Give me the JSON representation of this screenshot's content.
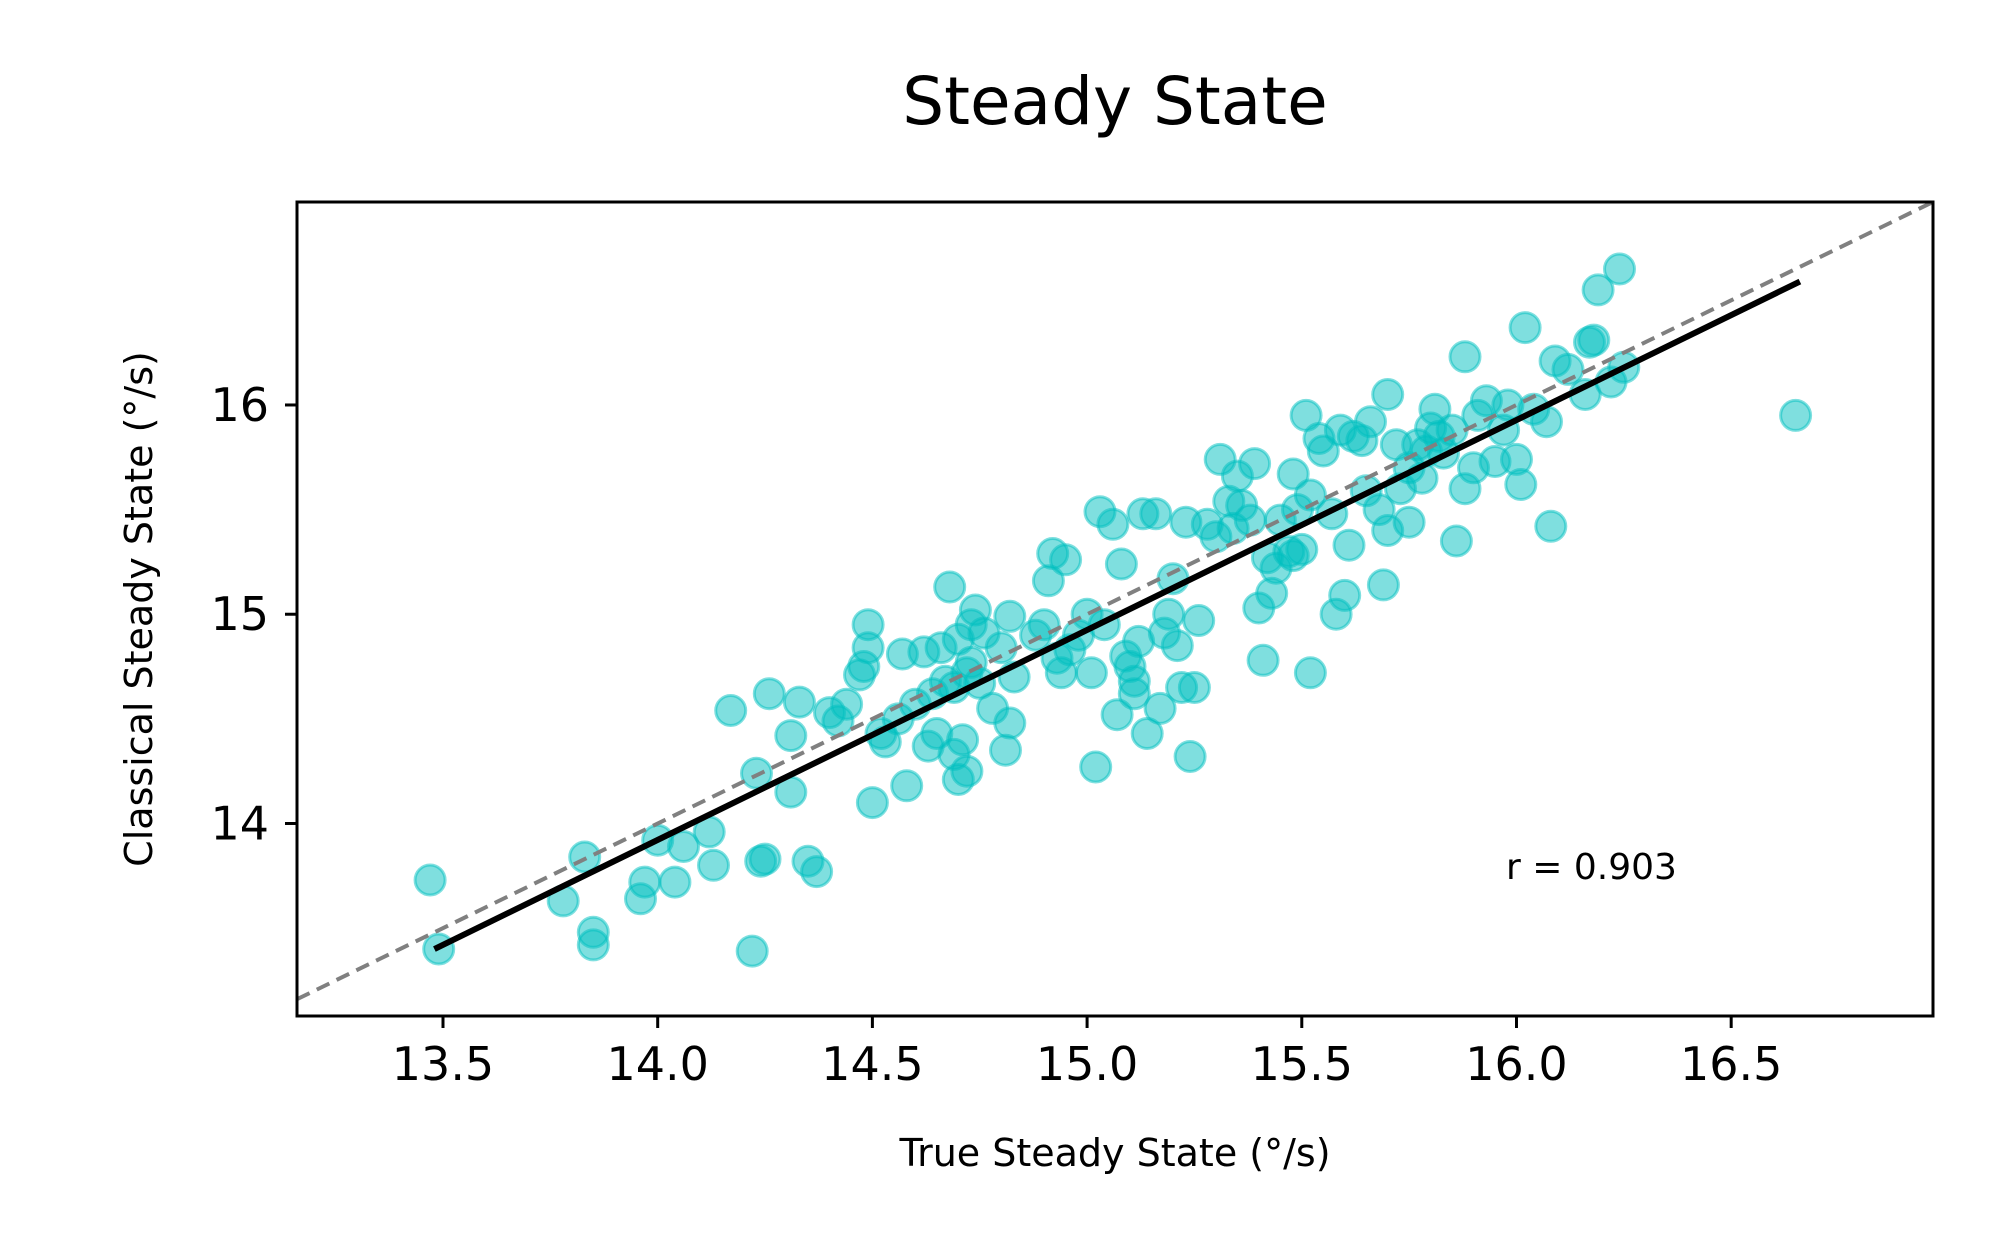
{
  "chart_data": {
    "type": "scatter",
    "title": "Steady State",
    "xlabel": "True Steady State (°/s)",
    "ylabel": "Classical Steady State (°/s)",
    "xlim": [
      13.16,
      16.97
    ],
    "ylim": [
      13.08,
      16.97
    ],
    "xticks": [
      "13.5",
      "14.0",
      "14.5",
      "15.0",
      "15.5",
      "16.0",
      "16.5"
    ],
    "yticks": [
      "14",
      "15",
      "16"
    ],
    "grid": false,
    "annotation": "r = 0.903",
    "colors": {
      "points": "#00bfbf",
      "fit_line": "#000000",
      "identity_line": "#808080"
    },
    "identity_line": {
      "x": [
        13.16,
        16.97
      ],
      "y": [
        13.16,
        16.97
      ],
      "style": "dashed"
    },
    "fit_line": {
      "x": [
        13.48,
        16.66
      ],
      "y": [
        13.4,
        16.59
      ],
      "style": "solid"
    },
    "series": [
      {
        "points": [
          [
            13.47,
            13.73
          ],
          [
            13.49,
            13.4
          ],
          [
            13.78,
            13.63
          ],
          [
            13.83,
            13.84
          ],
          [
            13.85,
            13.48
          ],
          [
            13.85,
            13.42
          ],
          [
            13.96,
            13.64
          ],
          [
            13.97,
            13.72
          ],
          [
            14.0,
            13.92
          ],
          [
            14.04,
            13.72
          ],
          [
            14.06,
            13.89
          ],
          [
            14.12,
            13.96
          ],
          [
            14.13,
            13.8
          ],
          [
            14.17,
            14.54
          ],
          [
            14.22,
            13.39
          ],
          [
            14.23,
            14.24
          ],
          [
            14.24,
            13.82
          ],
          [
            14.25,
            13.83
          ],
          [
            14.26,
            14.62
          ],
          [
            14.31,
            14.15
          ],
          [
            14.31,
            14.42
          ],
          [
            14.33,
            14.58
          ],
          [
            14.35,
            13.82
          ],
          [
            14.37,
            13.77
          ],
          [
            14.4,
            14.53
          ],
          [
            14.42,
            14.49
          ],
          [
            14.44,
            14.57
          ],
          [
            14.47,
            14.71
          ],
          [
            14.48,
            14.75
          ],
          [
            14.49,
            14.95
          ],
          [
            14.49,
            14.84
          ],
          [
            14.5,
            14.1
          ],
          [
            14.52,
            14.43
          ],
          [
            14.53,
            14.39
          ],
          [
            14.56,
            14.5
          ],
          [
            14.57,
            14.81
          ],
          [
            14.58,
            14.18
          ],
          [
            14.6,
            14.57
          ],
          [
            14.62,
            14.82
          ],
          [
            14.63,
            14.37
          ],
          [
            14.64,
            14.62
          ],
          [
            14.65,
            14.43
          ],
          [
            14.66,
            14.84
          ],
          [
            14.67,
            14.68
          ],
          [
            14.68,
            15.13
          ],
          [
            14.69,
            14.65
          ],
          [
            14.69,
            14.33
          ],
          [
            14.7,
            14.88
          ],
          [
            14.7,
            14.21
          ],
          [
            14.71,
            14.4
          ],
          [
            14.72,
            14.25
          ],
          [
            14.72,
            14.72
          ],
          [
            14.73,
            14.77
          ],
          [
            14.73,
            14.95
          ],
          [
            14.74,
            15.02
          ],
          [
            14.75,
            14.67
          ],
          [
            14.76,
            14.91
          ],
          [
            14.78,
            14.55
          ],
          [
            14.8,
            14.84
          ],
          [
            14.81,
            14.35
          ],
          [
            14.82,
            14.48
          ],
          [
            14.82,
            14.99
          ],
          [
            14.83,
            14.7
          ],
          [
            14.88,
            14.9
          ],
          [
            14.9,
            14.95
          ],
          [
            14.91,
            15.16
          ],
          [
            14.92,
            15.29
          ],
          [
            14.93,
            14.79
          ],
          [
            14.94,
            14.72
          ],
          [
            14.95,
            15.26
          ],
          [
            14.96,
            14.83
          ],
          [
            14.98,
            14.9
          ],
          [
            15.0,
            15.0
          ],
          [
            15.01,
            14.72
          ],
          [
            15.02,
            14.27
          ],
          [
            15.03,
            15.49
          ],
          [
            15.04,
            14.95
          ],
          [
            15.06,
            15.43
          ],
          [
            15.07,
            14.52
          ],
          [
            15.08,
            15.24
          ],
          [
            15.09,
            14.8
          ],
          [
            15.1,
            14.75
          ],
          [
            15.11,
            14.68
          ],
          [
            15.11,
            14.62
          ],
          [
            15.12,
            14.87
          ],
          [
            15.13,
            15.48
          ],
          [
            15.14,
            14.43
          ],
          [
            15.16,
            15.48
          ],
          [
            15.17,
            14.55
          ],
          [
            15.18,
            14.91
          ],
          [
            15.19,
            15.0
          ],
          [
            15.2,
            15.17
          ],
          [
            15.21,
            14.85
          ],
          [
            15.22,
            14.65
          ],
          [
            15.23,
            15.44
          ],
          [
            15.24,
            14.32
          ],
          [
            15.25,
            14.65
          ],
          [
            15.26,
            14.97
          ],
          [
            15.28,
            15.43
          ],
          [
            15.3,
            15.37
          ],
          [
            15.31,
            15.74
          ],
          [
            15.33,
            15.54
          ],
          [
            15.34,
            15.41
          ],
          [
            15.35,
            15.66
          ],
          [
            15.36,
            15.52
          ],
          [
            15.38,
            15.45
          ],
          [
            15.39,
            15.72
          ],
          [
            15.4,
            15.03
          ],
          [
            15.41,
            14.78
          ],
          [
            15.42,
            15.27
          ],
          [
            15.43,
            15.1
          ],
          [
            15.44,
            15.22
          ],
          [
            15.45,
            15.45
          ],
          [
            15.47,
            15.3
          ],
          [
            15.48,
            15.28
          ],
          [
            15.48,
            15.67
          ],
          [
            15.49,
            15.5
          ],
          [
            15.5,
            15.31
          ],
          [
            15.51,
            15.95
          ],
          [
            15.52,
            15.57
          ],
          [
            15.52,
            14.72
          ],
          [
            15.54,
            15.84
          ],
          [
            15.55,
            15.78
          ],
          [
            15.57,
            15.48
          ],
          [
            15.58,
            15.0
          ],
          [
            15.59,
            15.88
          ],
          [
            15.6,
            15.09
          ],
          [
            15.61,
            15.33
          ],
          [
            15.62,
            15.85
          ],
          [
            15.64,
            15.83
          ],
          [
            15.65,
            15.59
          ],
          [
            15.66,
            15.92
          ],
          [
            15.68,
            15.5
          ],
          [
            15.69,
            15.14
          ],
          [
            15.7,
            15.4
          ],
          [
            15.7,
            16.05
          ],
          [
            15.72,
            15.81
          ],
          [
            15.73,
            15.6
          ],
          [
            15.75,
            15.7
          ],
          [
            15.75,
            15.44
          ],
          [
            15.77,
            15.81
          ],
          [
            15.78,
            15.65
          ],
          [
            15.79,
            15.78
          ],
          [
            15.8,
            15.89
          ],
          [
            15.81,
            15.98
          ],
          [
            15.82,
            15.85
          ],
          [
            15.83,
            15.77
          ],
          [
            15.85,
            15.88
          ],
          [
            15.86,
            15.35
          ],
          [
            15.88,
            15.6
          ],
          [
            15.88,
            16.23
          ],
          [
            15.9,
            15.7
          ],
          [
            15.91,
            15.95
          ],
          [
            15.93,
            16.02
          ],
          [
            15.95,
            15.73
          ],
          [
            15.97,
            15.88
          ],
          [
            15.98,
            16.0
          ],
          [
            16.0,
            15.74
          ],
          [
            16.01,
            15.62
          ],
          [
            16.02,
            16.37
          ],
          [
            16.04,
            15.98
          ],
          [
            16.07,
            15.92
          ],
          [
            16.08,
            15.42
          ],
          [
            16.09,
            16.21
          ],
          [
            16.12,
            16.17
          ],
          [
            16.16,
            16.05
          ],
          [
            16.17,
            16.3
          ],
          [
            16.18,
            16.31
          ],
          [
            16.19,
            16.55
          ],
          [
            16.22,
            16.11
          ],
          [
            16.24,
            16.65
          ],
          [
            16.25,
            16.18
          ],
          [
            16.65,
            15.95
          ]
        ]
      }
    ]
  }
}
